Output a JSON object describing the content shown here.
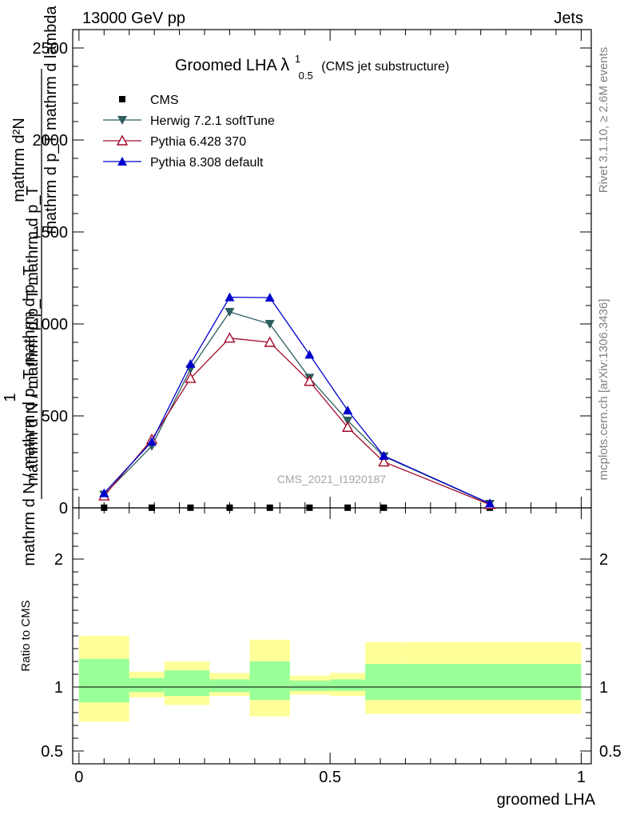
{
  "header": {
    "left": "13000 GeV pp",
    "right": "Jets"
  },
  "side": {
    "rivet": "Rivet 3.1.10, ≥ 2.6M events",
    "mcplots": "mcplots.cern.ch [arXiv:1306.3436]"
  },
  "chart_data": {
    "type": "line",
    "title": {
      "main": "Groomed LHA",
      "lambda": "λ",
      "sup": "1",
      "sub": "0.5",
      "suffix": "(CMS jet substructure)"
    },
    "ylabel": {
      "num_one": "1",
      "num_rest": "mathrm d N / mathrm d p_T mathrm d p_T",
      "den": "mathrm d N / mathrm d p_T mathrm d p_T",
      "main_num": "mathrm d²N",
      "main_den": "mathrm d p_T mathrm d lambda"
    },
    "watermark": "CMS_2021_I1920187",
    "xlabel": "groomed LHA",
    "xlim": [
      -0.0125,
      1.02
    ],
    "ylim": [
      0,
      2600
    ],
    "xticks": [
      0,
      0.5,
      1
    ],
    "xtick_labels": [
      "0",
      "0.5",
      "1"
    ],
    "yticks": [
      0,
      500,
      1000,
      1500,
      2000,
      2500
    ],
    "ytick_labels": [
      "0",
      "500",
      "1000",
      "1500",
      "2000",
      "2500"
    ],
    "bin_edges": [
      0,
      0.1,
      0.17,
      0.26,
      0.34,
      0.42,
      0.5,
      0.57,
      0.65,
      1.0
    ],
    "x": [
      0.05,
      0.145,
      0.222,
      0.3,
      0.38,
      0.459,
      0.535,
      0.607,
      0.818
    ],
    "series": [
      {
        "name": "CMS",
        "color": "#000000",
        "marker": "square",
        "values": [
          1,
          1,
          1,
          1,
          1,
          1,
          1,
          1,
          1
        ]
      },
      {
        "name": "Herwig 7.2.1 softTune",
        "color": "#2c5d5f",
        "marker": "triangle-down",
        "values": [
          72,
          336,
          754,
          1065,
          1000,
          707,
          474,
          280,
          22
        ]
      },
      {
        "name": "Pythia 6.428 370",
        "color": "#a40a2c",
        "marker": "triangle-up-open",
        "values": [
          65,
          372,
          704,
          923,
          900,
          688,
          438,
          250,
          18
        ]
      },
      {
        "name": "Pythia 8.308 default",
        "color": "#0000cc",
        "marker": "triangle-up",
        "values": [
          80,
          360,
          783,
          1145,
          1143,
          833,
          530,
          283,
          24
        ]
      }
    ],
    "ratio": {
      "ylabel": "Ratio to CMS",
      "ylim": [
        0.4,
        2.4
      ],
      "yticks": [
        0.5,
        1,
        2
      ],
      "ytick_labels": [
        "0.5",
        "1",
        "2"
      ],
      "bands": [
        {
          "x0": 0.0,
          "x1": 0.1,
          "yellow": [
            0.73,
            1.4
          ],
          "green": [
            0.88,
            1.22
          ]
        },
        {
          "x0": 0.1,
          "x1": 0.17,
          "yellow": [
            0.92,
            1.12
          ],
          "green": [
            0.96,
            1.07
          ]
        },
        {
          "x0": 0.17,
          "x1": 0.26,
          "yellow": [
            0.86,
            1.2
          ],
          "green": [
            0.93,
            1.13
          ]
        },
        {
          "x0": 0.26,
          "x1": 0.34,
          "yellow": [
            0.93,
            1.11
          ],
          "green": [
            0.96,
            1.06
          ]
        },
        {
          "x0": 0.34,
          "x1": 0.42,
          "yellow": [
            0.77,
            1.37
          ],
          "green": [
            0.9,
            1.2
          ]
        },
        {
          "x0": 0.42,
          "x1": 0.5,
          "yellow": [
            0.94,
            1.09
          ],
          "green": [
            0.97,
            1.05
          ]
        },
        {
          "x0": 0.5,
          "x1": 0.57,
          "yellow": [
            0.93,
            1.11
          ],
          "green": [
            0.97,
            1.06
          ]
        },
        {
          "x0": 0.57,
          "x1": 0.65,
          "yellow": [
            0.79,
            1.35
          ],
          "green": [
            0.9,
            1.18
          ]
        },
        {
          "x0": 0.65,
          "x1": 1.0,
          "yellow": [
            0.79,
            1.35
          ],
          "green": [
            0.9,
            1.18
          ]
        }
      ]
    }
  }
}
